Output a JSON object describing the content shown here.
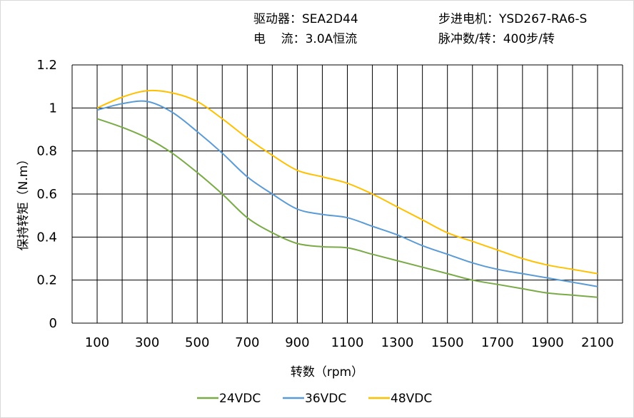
{
  "header": {
    "driver": "驱动器：SEA2D44",
    "motor": "步进电机：YSD267-RA6-S",
    "current": "电    流：3.0A恒流",
    "pulses": "脉冲数/转：400步/转"
  },
  "chart_data": {
    "type": "line",
    "title": "",
    "xlabel": "转数（rpm）",
    "ylabel": "保持转矩（N.m）",
    "xlim": [
      0,
      2200
    ],
    "ylim": [
      0,
      1.2
    ],
    "x_grid_step": 100,
    "y_grid_step": 0.2,
    "grid": true,
    "legend_position": "bottom",
    "x_ticks": [
      "100",
      "300",
      "500",
      "700",
      "900",
      "1100",
      "1300",
      "1500",
      "1700",
      "1900",
      "2100"
    ],
    "y_ticks": [
      "0",
      "0.2",
      "0.4",
      "0.6",
      "0.8",
      "1",
      "1.2"
    ],
    "x": [
      100,
      200,
      300,
      400,
      500,
      600,
      700,
      800,
      900,
      1000,
      1100,
      1200,
      1300,
      1400,
      1500,
      1600,
      1700,
      1800,
      1900,
      2000,
      2100
    ],
    "series": [
      {
        "name": "24VDC",
        "color": "#7aab48",
        "values": [
          0.95,
          0.91,
          0.86,
          0.79,
          0.7,
          0.6,
          0.49,
          0.42,
          0.37,
          0.355,
          0.35,
          0.32,
          0.29,
          0.26,
          0.23,
          0.2,
          0.18,
          0.16,
          0.14,
          0.13,
          0.12
        ]
      },
      {
        "name": "36VDC",
        "color": "#5b9bd5",
        "values": [
          0.99,
          1.02,
          1.03,
          0.98,
          0.89,
          0.79,
          0.68,
          0.6,
          0.53,
          0.505,
          0.49,
          0.45,
          0.41,
          0.36,
          0.32,
          0.28,
          0.25,
          0.23,
          0.21,
          0.19,
          0.17
        ]
      },
      {
        "name": "48VDC",
        "color": "#ffc000",
        "values": [
          1.0,
          1.05,
          1.08,
          1.07,
          1.03,
          0.95,
          0.86,
          0.78,
          0.71,
          0.68,
          0.65,
          0.6,
          0.54,
          0.48,
          0.42,
          0.38,
          0.34,
          0.3,
          0.27,
          0.25,
          0.23
        ]
      }
    ]
  }
}
